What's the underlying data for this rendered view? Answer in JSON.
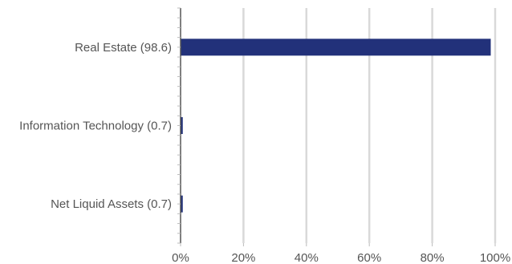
{
  "chart_data": {
    "type": "bar",
    "orientation": "horizontal",
    "categories": [
      "Real Estate (98.6)",
      "Information Technology (0.7)",
      "Net Liquid Assets (0.7)"
    ],
    "values": [
      98.6,
      0.7,
      0.7
    ],
    "xlim": [
      0,
      100
    ],
    "xticks": [
      "0%",
      "20%",
      "40%",
      "60%",
      "80%",
      "100%"
    ],
    "grid": "vertical",
    "legend": "none",
    "colors": {
      "bar": "#22317a",
      "grid": "#d9d9d9",
      "axis": "#555555",
      "text": "#555555"
    }
  }
}
